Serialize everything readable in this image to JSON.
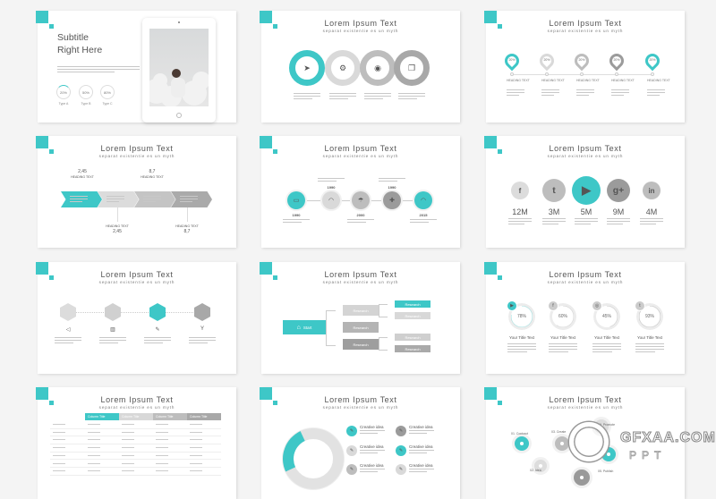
{
  "colors": {
    "teal": "#3ec7c7",
    "light": "#d9d9d9",
    "mid": "#bdbdbd",
    "dark": "#9b9b9b",
    "darker": "#888888"
  },
  "slide_title": "Lorem Ipsum Text",
  "slide_subtitle": "separat existentie es un myth",
  "s1": {
    "heading_line1": "Subtitle",
    "heading_line2": "Right Here",
    "rings": [
      {
        "pct": "20%",
        "label": "Type A"
      },
      {
        "pct": "50%",
        "label": "Type B"
      },
      {
        "pct": "80%",
        "label": "Type C"
      }
    ]
  },
  "s2": {
    "icons": [
      "send-icon",
      "gear-icon",
      "camera-icon",
      "copy-icon"
    ]
  },
  "s3": {
    "pins": [
      {
        "pct": "20%",
        "label1": "HEADING",
        "label2": "TEXT"
      },
      {
        "pct": "20%",
        "label1": "HEADING",
        "label2": "TEXT"
      },
      {
        "pct": "20%",
        "label1": "HEADING",
        "label2": "TEXT"
      },
      {
        "pct": "20%",
        "label1": "HEADING",
        "label2": "TEXT"
      },
      {
        "pct": "20%",
        "label1": "HEADING",
        "label2": "TEXT"
      }
    ]
  },
  "s4": {
    "top": [
      {
        "value": "2,45",
        "heading": "HEADING TEXT"
      },
      {
        "value": "8,7",
        "heading": "HEADING TEXT"
      }
    ],
    "bottom": [
      {
        "value": "2,45",
        "heading": "HEADING TEXT"
      },
      {
        "value": "8,7",
        "heading": "HEADING TEXT"
      }
    ]
  },
  "s5": {
    "years": [
      "1990",
      "1990",
      "2000",
      "1990",
      "2015"
    ]
  },
  "s6": {
    "networks": [
      {
        "icon": "facebook-icon",
        "glyph": "f",
        "value": "12M"
      },
      {
        "icon": "twitter-icon",
        "glyph": "t",
        "value": "3M"
      },
      {
        "icon": "youtube-icon",
        "glyph": "▶",
        "value": "5M"
      },
      {
        "icon": "google-plus-icon",
        "glyph": "g+",
        "value": "9M"
      },
      {
        "icon": "linkedin-icon",
        "glyph": "in",
        "value": "4M"
      }
    ]
  },
  "s8": {
    "start": "Start",
    "research": "Research"
  },
  "s9": {
    "items": [
      {
        "icon": "youtube-icon",
        "pct": 78,
        "label": "78%",
        "title": "Your Title Text"
      },
      {
        "icon": "facebook-icon",
        "pct": 60,
        "label": "60%",
        "title": "Your Title Text"
      },
      {
        "icon": "instagram-icon",
        "pct": 45,
        "label": "45%",
        "title": "Your Title Text"
      },
      {
        "icon": "twitter-icon",
        "pct": 93,
        "label": "93%",
        "title": "Your Title Text"
      }
    ]
  },
  "s10": {
    "columns": [
      "Column Title",
      "Column Title",
      "Column Title",
      "Column Title"
    ]
  },
  "s11": {
    "idea": "Creative idea"
  },
  "s12": {
    "steps": [
      "01. Contract",
      "02. Idea",
      "03. Create",
      "05. Publish",
      "06. Promote"
    ]
  },
  "watermark": {
    "text": "GFXAA.COM",
    "sub": "PPT"
  }
}
